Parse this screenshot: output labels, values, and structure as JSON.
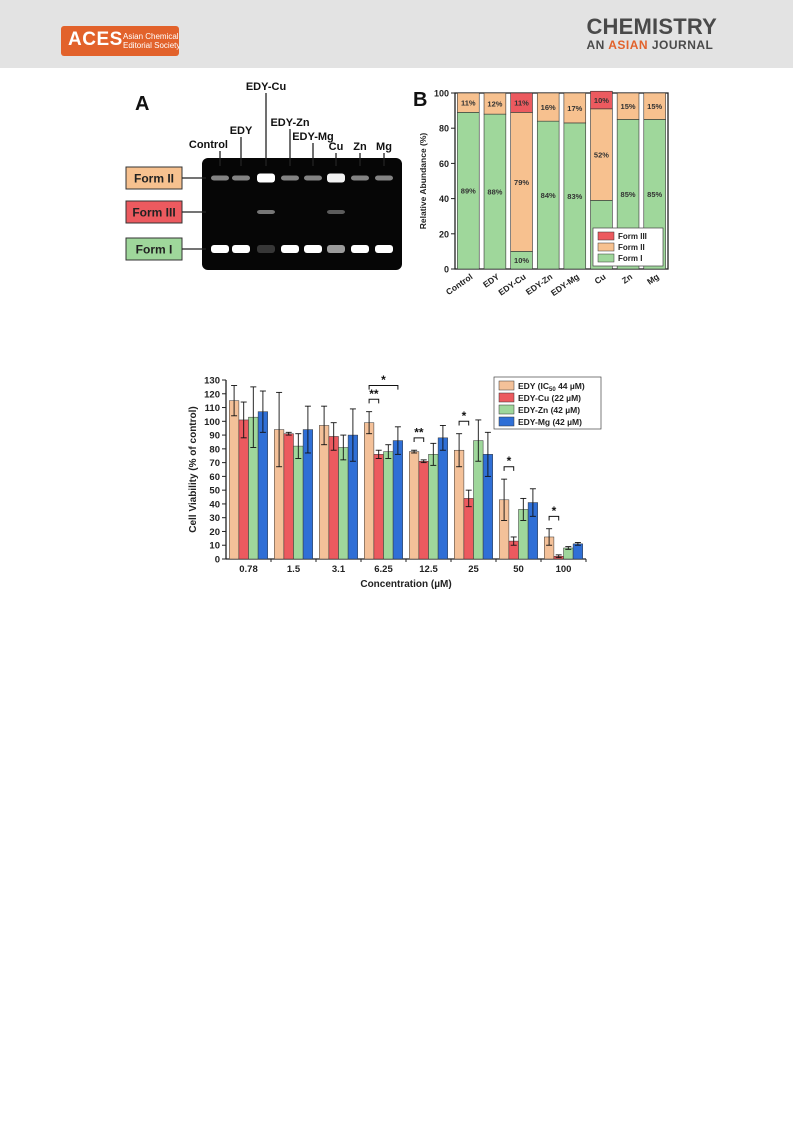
{
  "header": {
    "logo_big": "ACES",
    "logo_sub": "Asian Chemical Editorial Society",
    "journal_title": "CHEMISTRY",
    "journal_sub_prefix": "AN ",
    "journal_sub_accent": "ASIAN",
    "journal_sub_suffix": " JOURNAL",
    "accent_color": "#e2622b"
  },
  "panel_a": {
    "label": "A",
    "lanes": [
      "Control",
      "EDY",
      "EDY-Cu",
      "EDY-Zn",
      "EDY-Mg",
      "Cu",
      "Zn",
      "Mg"
    ],
    "forms": [
      "Form II",
      "Form III",
      "Form I"
    ]
  },
  "chart_data": [
    {
      "type": "bar",
      "panel": "B",
      "stacked": true,
      "categories": [
        "Control",
        "EDY",
        "EDY-Cu",
        "EDY-Zn",
        "EDY-Mg",
        "Cu",
        "Zn",
        "Mg"
      ],
      "ylabel": "Relative Abundance (%)",
      "ylim": [
        0,
        100
      ],
      "yticks": [
        0,
        20,
        40,
        60,
        80,
        100
      ],
      "legend_position": "bottom-right",
      "series": [
        {
          "name": "Form I",
          "color": "#9fd79b",
          "values": [
            89,
            88,
            10,
            84,
            83,
            39,
            85,
            85
          ],
          "labels": [
            "89%",
            "88%",
            "10%",
            "84%",
            "83%",
            "39%",
            "85%",
            "85%"
          ]
        },
        {
          "name": "Form II",
          "color": "#f7c18f",
          "values": [
            11,
            12,
            79,
            16,
            17,
            52,
            15,
            15
          ],
          "labels": [
            "11%",
            "12%",
            "79%",
            "16%",
            "17%",
            "52%",
            "15%",
            "15%"
          ]
        },
        {
          "name": "Form III",
          "color": "#ec5a5f",
          "values": [
            0,
            0,
            11,
            0,
            0,
            10,
            0,
            0
          ],
          "labels": [
            "",
            "",
            "11%",
            "",
            "",
            "10%",
            "",
            ""
          ]
        }
      ],
      "legend": [
        "Form III",
        "Form II",
        "Form I"
      ]
    },
    {
      "type": "bar",
      "panel": "C",
      "categories": [
        "0.78",
        "1.5",
        "3.1",
        "6.25",
        "12.5",
        "25",
        "50",
        "100"
      ],
      "xlabel": "Concentration (µM)",
      "ylabel": "Cell Viability (% of control)",
      "ylim": [
        0,
        130
      ],
      "yticks": [
        0,
        10,
        20,
        30,
        40,
        50,
        60,
        70,
        80,
        90,
        100,
        110,
        120,
        130
      ],
      "legend_position": "top-right",
      "series": [
        {
          "name": "EDY (IC50 44 µM)",
          "legend_main": "EDY (IC",
          "legend_sub": "50",
          "legend_tail": " 44 µM)",
          "color": "#f4c199",
          "values": [
            115,
            94,
            97,
            99,
            78,
            79,
            43,
            16
          ],
          "errors": [
            11,
            27,
            14,
            8,
            1,
            12,
            15,
            6
          ]
        },
        {
          "name": "EDY-Cu (22 µM)",
          "color": "#ec5a5f",
          "values": [
            101,
            91,
            89,
            76,
            71,
            44,
            13,
            2
          ],
          "errors": [
            13,
            1,
            10,
            3,
            1,
            6,
            3,
            1
          ]
        },
        {
          "name": "EDY-Zn (42 µM)",
          "color": "#9fd79b",
          "values": [
            103,
            82,
            81,
            78,
            76,
            86,
            36,
            8
          ],
          "errors": [
            22,
            9,
            9,
            5,
            8,
            15,
            8,
            1
          ]
        },
        {
          "name": "EDY-Mg (42 µM)",
          "color": "#2f6fd6",
          "values": [
            107,
            94,
            90,
            86,
            88,
            76,
            41,
            11
          ],
          "errors": [
            15,
            17,
            19,
            10,
            9,
            16,
            10,
            1
          ]
        }
      ],
      "significance": [
        {
          "category": "6.25",
          "label": "*",
          "from_series": 0,
          "to_series": 3
        },
        {
          "category": "6.25",
          "label": "**",
          "from_series": 0,
          "to_series": 1
        },
        {
          "category": "12.5",
          "label": "**",
          "from_series": 0,
          "to_series": 1
        },
        {
          "category": "25",
          "label": "*",
          "from_series": 0,
          "to_series": 1
        },
        {
          "category": "50",
          "label": "*",
          "from_series": 0,
          "to_series": 1
        },
        {
          "category": "100",
          "label": "*",
          "from_series": 0,
          "to_series": 1
        }
      ]
    }
  ]
}
